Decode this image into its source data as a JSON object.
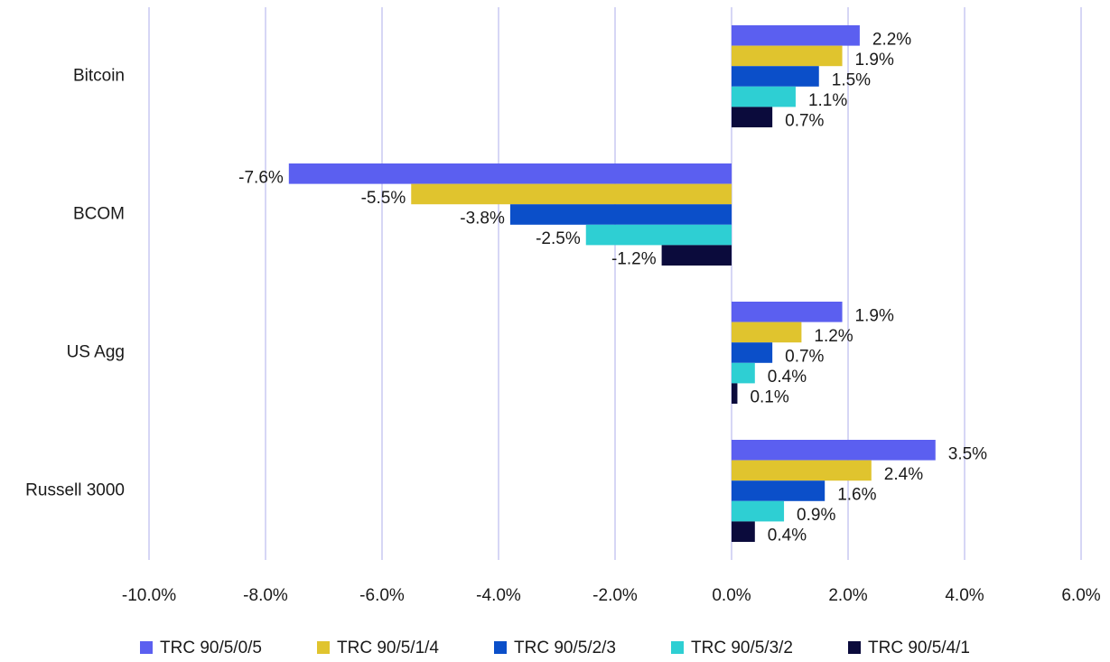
{
  "chart_data": {
    "type": "hbar",
    "categories": [
      "Bitcoin",
      "BCOM",
      "US Agg",
      "Russell 3000"
    ],
    "series": [
      {
        "name": "TRC 90/5/0/5",
        "color": "#5b5ff0",
        "values": [
          2.2,
          -7.6,
          1.9,
          3.5
        ],
        "value_labels": [
          "2.2%",
          "-7.6%",
          "1.9%",
          "3.5%"
        ]
      },
      {
        "name": "TRC 90/5/1/4",
        "color": "#e0c42e",
        "values": [
          1.9,
          -5.5,
          1.2,
          2.4
        ],
        "value_labels": [
          "1.9%",
          "-5.5%",
          "1.2%",
          "2.4%"
        ]
      },
      {
        "name": "TRC 90/5/2/3",
        "color": "#0b4fc9",
        "values": [
          1.5,
          -3.8,
          0.7,
          1.6
        ],
        "value_labels": [
          "1.5%",
          "-3.8%",
          "0.7%",
          "1.6%"
        ]
      },
      {
        "name": "TRC 90/5/3/2",
        "color": "#2ecfd3",
        "values": [
          1.1,
          -2.5,
          0.4,
          0.9
        ],
        "value_labels": [
          "1.1%",
          "-2.5%",
          "0.4%",
          "0.9%"
        ]
      },
      {
        "name": "TRC 90/5/4/1",
        "color": "#0b0b3c",
        "values": [
          0.7,
          -1.2,
          0.1,
          0.4
        ],
        "value_labels": [
          "0.7%",
          "-1.2%",
          "0.1%",
          "0.4%"
        ]
      }
    ],
    "xlim": [
      -10,
      6
    ],
    "xticks": [
      {
        "value": -10,
        "label": "-10.0%"
      },
      {
        "value": -8,
        "label": "-8.0%"
      },
      {
        "value": -6,
        "label": "-6.0%"
      },
      {
        "value": -4,
        "label": "-4.0%"
      },
      {
        "value": -2,
        "label": "-2.0%"
      },
      {
        "value": 0,
        "label": "0.0%"
      },
      {
        "value": 2,
        "label": "2.0%"
      },
      {
        "value": 4,
        "label": "4.0%"
      },
      {
        "value": 6,
        "label": "6.0%"
      }
    ],
    "grid": true,
    "legend": "bottom"
  }
}
